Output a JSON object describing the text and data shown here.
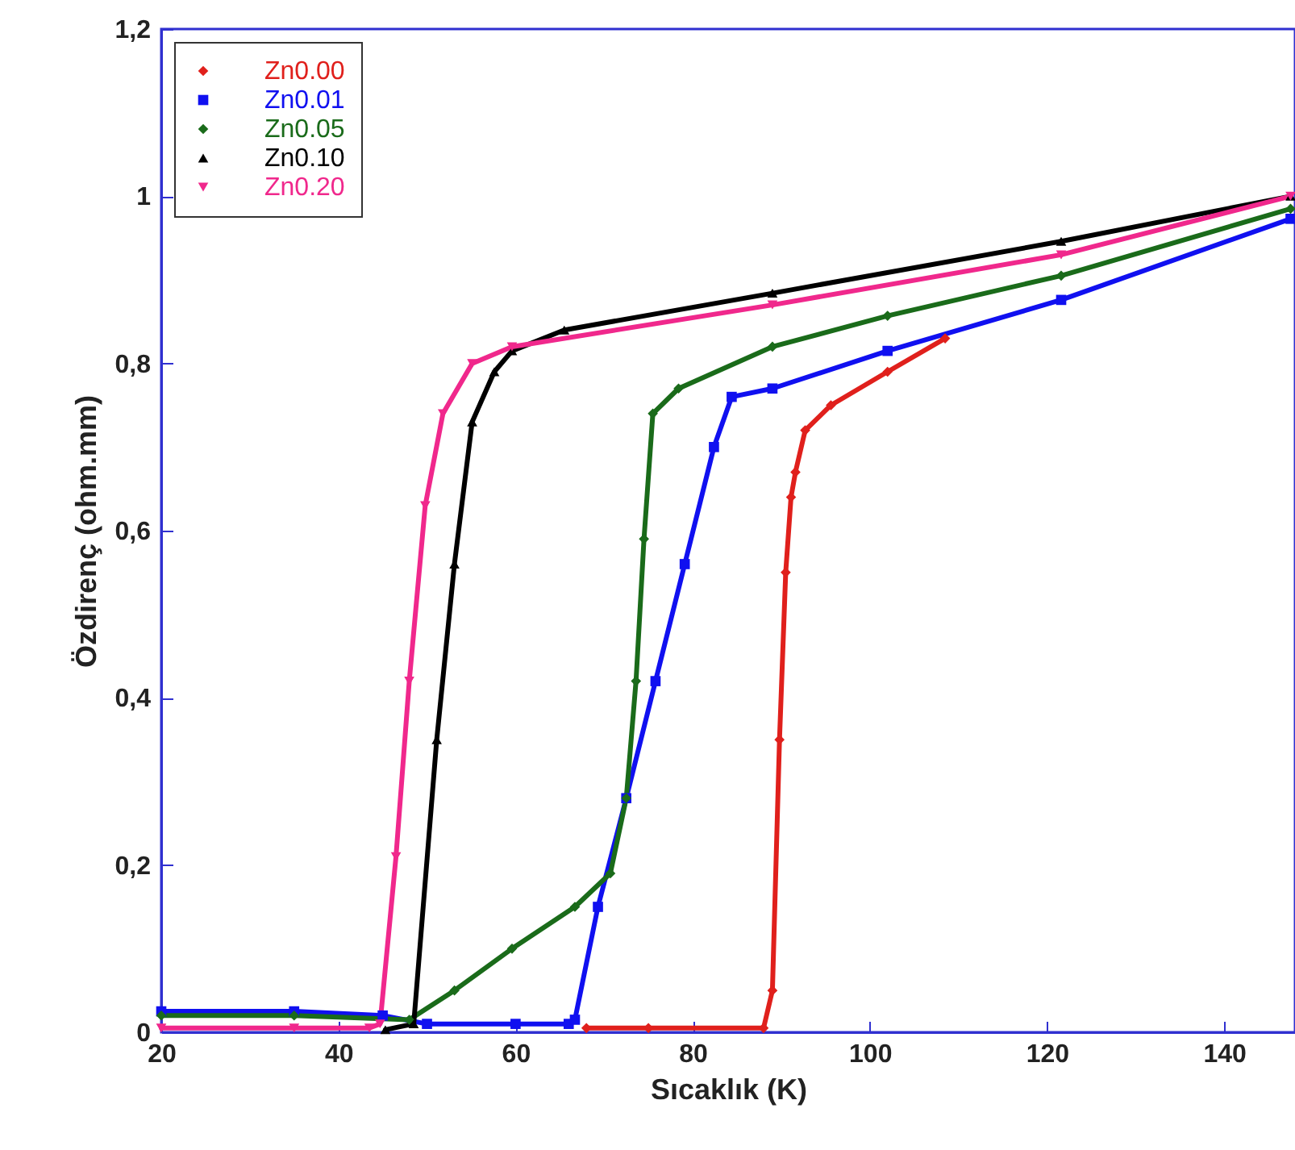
{
  "chart_data": {
    "type": "line",
    "xlabel": "Sıcaklık (K)",
    "ylabel": "Özdirenç (ohm.mm)",
    "xlim": [
      20,
      148
    ],
    "ylim": [
      0,
      1.2
    ],
    "xticks": [
      20,
      40,
      60,
      80,
      100,
      120,
      140
    ],
    "yticks": [
      0,
      {
        "value": 0.2,
        "label": "0,2"
      },
      {
        "value": 0.4,
        "label": "0,4"
      },
      {
        "value": 0.6,
        "label": "0,6"
      },
      {
        "value": 0.8,
        "label": "0,8"
      },
      1,
      {
        "value": 1.2,
        "label": "1,2"
      }
    ],
    "grid": false,
    "legend": "top left",
    "line_style": "solid",
    "series": [
      {
        "name": "Zn0.00",
        "color": "#e0201c",
        "marker": "diamond",
        "x": [
          68,
          75,
          88,
          89,
          89.8,
          90.5,
          91.1,
          91.6,
          92.7,
          95.6,
          102,
          108.5
        ],
        "values": [
          0.005,
          0.005,
          0.005,
          0.05,
          0.35,
          0.55,
          0.64,
          0.67,
          0.72,
          0.75,
          0.79,
          0.83
        ]
      },
      {
        "name": "Zn0.01",
        "color": "#1010f0",
        "marker": "square",
        "x": [
          20,
          35,
          45,
          50,
          60,
          66,
          66.7,
          69.3,
          72.5,
          75.8,
          79.1,
          82.4,
          84.4,
          89,
          102,
          121.6,
          147.5
        ],
        "values": [
          0.025,
          0.025,
          0.02,
          0.01,
          0.01,
          0.01,
          0.015,
          0.15,
          0.28,
          0.42,
          0.56,
          0.7,
          0.76,
          0.77,
          0.815,
          0.876,
          0.973
        ]
      },
      {
        "name": "Zn0.05",
        "color": "#1a6b1a",
        "marker": "diamond",
        "x": [
          20,
          35,
          48,
          53.1,
          59.6,
          66.7,
          70.7,
          72.5,
          73.6,
          74.5,
          75.5,
          78.4,
          89,
          102,
          121.6,
          147.5
        ],
        "values": [
          0.02,
          0.02,
          0.015,
          0.05,
          0.1,
          0.15,
          0.19,
          0.28,
          0.42,
          0.59,
          0.74,
          0.77,
          0.82,
          0.857,
          0.905,
          0.985
        ]
      },
      {
        "name": "Zn0.10",
        "color": "#000000",
        "marker": "triangle",
        "x": [
          45.3,
          48.5,
          51.1,
          53.1,
          55.1,
          57.6,
          59.6,
          65.5,
          89,
          121.6,
          147.5
        ],
        "values": [
          0.003,
          0.01,
          0.35,
          0.56,
          0.73,
          0.79,
          0.815,
          0.84,
          0.884,
          0.946,
          1.0
        ]
      },
      {
        "name": "Zn0.20",
        "color": "#f0288c",
        "marker": "triangle-down",
        "x": [
          20,
          35,
          43.5,
          44.7,
          46.5,
          48,
          49.8,
          51.8,
          55.1,
          59.6,
          89,
          121.6,
          147.5
        ],
        "values": [
          0.005,
          0.005,
          0.005,
          0.01,
          0.21,
          0.42,
          0.63,
          0.74,
          0.8,
          0.82,
          0.87,
          0.93,
          1.0
        ]
      }
    ]
  }
}
